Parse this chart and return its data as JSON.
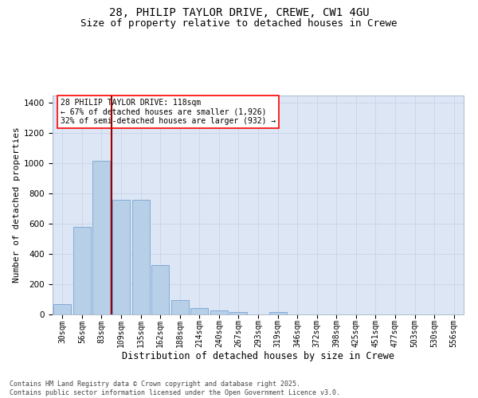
{
  "title_line1": "28, PHILIP TAYLOR DRIVE, CREWE, CW1 4GU",
  "title_line2": "Size of property relative to detached houses in Crewe",
  "xlabel": "Distribution of detached houses by size in Crewe",
  "ylabel": "Number of detached properties",
  "categories": [
    "30sqm",
    "56sqm",
    "83sqm",
    "109sqm",
    "135sqm",
    "162sqm",
    "188sqm",
    "214sqm",
    "240sqm",
    "267sqm",
    "293sqm",
    "319sqm",
    "346sqm",
    "372sqm",
    "398sqm",
    "425sqm",
    "451sqm",
    "477sqm",
    "503sqm",
    "530sqm",
    "556sqm"
  ],
  "values": [
    68,
    578,
    1020,
    760,
    760,
    325,
    93,
    40,
    25,
    15,
    0,
    15,
    0,
    0,
    0,
    0,
    0,
    0,
    0,
    0,
    0
  ],
  "bar_color": "#b8cfe8",
  "bar_edge_color": "#6699cc",
  "grid_color": "#c8d4e8",
  "background_color": "#dde6f4",
  "vline_color": "#990000",
  "vline_x": 2.5,
  "annotation_line1": "28 PHILIP TAYLOR DRIVE: 118sqm",
  "annotation_line2": "← 67% of detached houses are smaller (1,926)",
  "annotation_line3": "32% of semi-detached houses are larger (932) →",
  "footer_text": "Contains HM Land Registry data © Crown copyright and database right 2025.\nContains public sector information licensed under the Open Government Licence v3.0.",
  "ylim_max": 1450,
  "yticks": [
    0,
    200,
    400,
    600,
    800,
    1000,
    1200,
    1400
  ],
  "title_fontsize": 10,
  "subtitle_fontsize": 9,
  "ylabel_fontsize": 8,
  "xlabel_fontsize": 8.5,
  "tick_fontsize": 7,
  "ann_fontsize": 7,
  "footer_fontsize": 6
}
